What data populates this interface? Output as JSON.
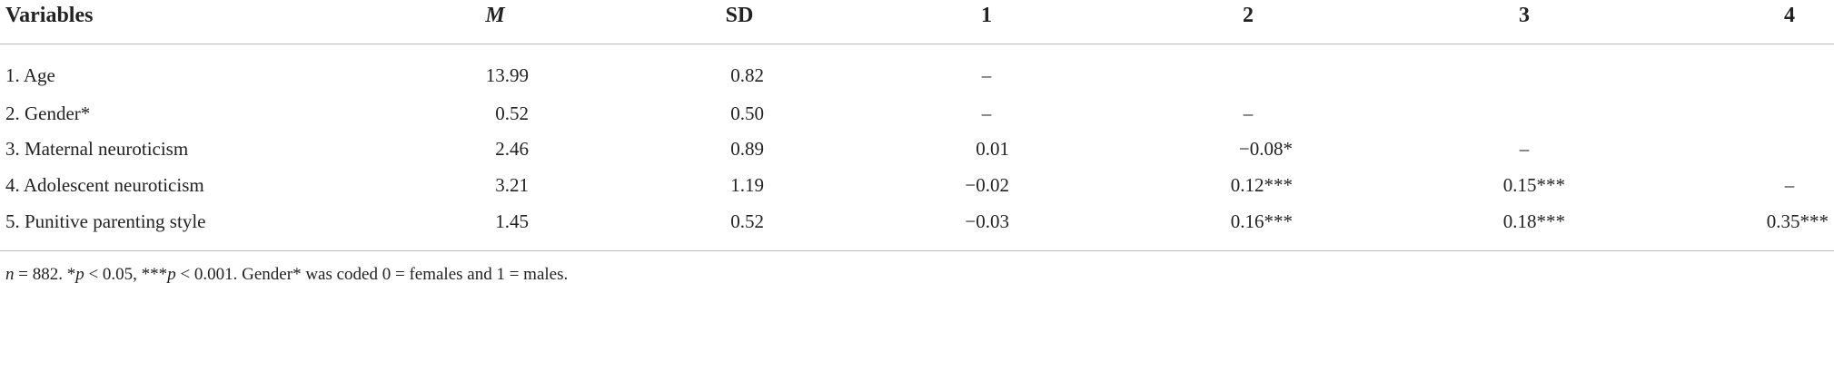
{
  "table": {
    "header": [
      "Variables",
      "M",
      "SD",
      "1",
      "2",
      "3",
      "4"
    ],
    "rows": [
      [
        "1. Age",
        "13.99",
        "0.82",
        "–",
        null,
        null,
        null
      ],
      [
        "2. Gender*",
        "0.52",
        "0.50",
        "–",
        "–",
        null,
        null
      ],
      [
        "3. Maternal neuroticism",
        "2.46",
        "0.89",
        "0.01",
        "−0.08*",
        "–",
        null
      ],
      [
        "4. Adolescent neuroticism",
        "3.21",
        "1.19",
        "−0.02",
        "0.12***",
        "0.15***",
        "–"
      ],
      [
        "5. Punitive parenting style",
        "1.45",
        "0.52",
        "−0.03",
        "0.16***",
        "0.18***",
        "0.35***"
      ]
    ]
  },
  "note": [
    "n",
    " = 882. *",
    "p",
    " < 0.05,  ***",
    "p",
    " < 0.001. Gender* was coded 0 = females and 1 = males."
  ]
}
